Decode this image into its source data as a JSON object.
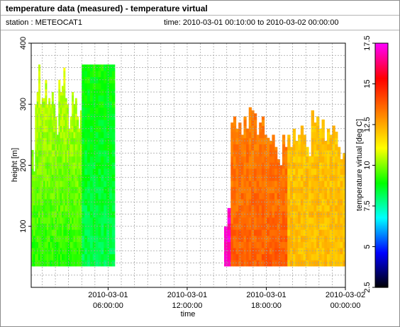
{
  "header": {
    "title": "temperature data (measured) - temperature virtual",
    "station_label": "station : METEOCAT1",
    "time_label": "time: 2010-03-01 00:10:00 to 2010-03-02 00:00:00"
  },
  "colors": {
    "colormap": [
      "#000000",
      "#0000ff",
      "#00ffff",
      "#00ff00",
      "#ffff00",
      "#ff8000",
      "#ff0000",
      "#ff00ff"
    ],
    "grid": "#a0a0a0"
  },
  "chart_data": {
    "type": "heatmap",
    "xlabel": "time",
    "ylabel": "height [m]",
    "colorbar_label": "temperature virtual [deg C]",
    "xlim": [
      0.1667,
      24
    ],
    "ylim": [
      0,
      400
    ],
    "clim": [
      2.5,
      17.5
    ],
    "x_ticks": [
      {
        "value": 6,
        "line1": "2010-03-01",
        "line2": "06:00:00"
      },
      {
        "value": 12,
        "line1": "2010-03-01",
        "line2": "12:00:00"
      },
      {
        "value": 18,
        "line1": "2010-03-01",
        "line2": "18:00:00"
      },
      {
        "value": 24,
        "line1": "2010-03-02",
        "line2": "00:00:00"
      }
    ],
    "y_ticks": [
      {
        "value": 100,
        "label": "100"
      },
      {
        "value": 200,
        "label": "200"
      },
      {
        "value": 300,
        "label": "300"
      },
      {
        "value": 400,
        "label": "400"
      }
    ],
    "colorbar_ticks": [
      {
        "value": 2.5,
        "label": "2.5"
      },
      {
        "value": 5,
        "label": "5"
      },
      {
        "value": 7.5,
        "label": "7.5"
      },
      {
        "value": 10,
        "label": "10"
      },
      {
        "value": 12.5,
        "label": "12.5"
      },
      {
        "value": 15,
        "label": "15"
      },
      {
        "value": 17.5,
        "label": "17.5"
      }
    ],
    "grid": true,
    "height_range": [
      35,
      365
    ],
    "segments": [
      {
        "t_start": 0.2,
        "t_end": 4.0,
        "tops": [
          225,
          190,
          300,
          320,
          365,
          300,
          310,
          310,
          340,
          300,
          310,
          300,
          320,
          300,
          280,
          250,
          340,
          320,
          330,
          360,
          310,
          300,
          260,
          280,
          320,
          300,
          310,
          280,
          260,
          290
        ],
        "bottom_value": 9.2,
        "top_value": 10.8
      },
      {
        "t_start": 4.0,
        "t_end": 6.5,
        "tops": [
          365,
          365,
          365,
          365,
          365,
          365,
          365,
          365,
          365,
          365,
          365,
          365
        ],
        "bottom_value": 8.3,
        "top_value": 9.0
      },
      {
        "t_start": 14.8,
        "t_end": 15.3,
        "tops": [
          100,
          130
        ],
        "bottom_value": 17.0,
        "top_value": 16.8
      },
      {
        "t_start": 15.3,
        "t_end": 19.6,
        "tops": [
          270,
          280,
          260,
          270,
          250,
          280,
          260,
          295,
          290,
          285,
          250,
          270,
          280,
          250,
          245,
          240,
          250,
          230,
          210,
          200,
          250,
          230
        ],
        "bottom_value": 13.8,
        "top_value": 13.0
      },
      {
        "t_start": 19.6,
        "t_end": 24.0,
        "tops": [
          250,
          230,
          260,
          240,
          250,
          265,
          250,
          230,
          215,
          290,
          270,
          280,
          260,
          275,
          240,
          260,
          250,
          265,
          255,
          230,
          210,
          220
        ],
        "bottom_value": 12.2,
        "top_value": 12.0
      }
    ]
  }
}
